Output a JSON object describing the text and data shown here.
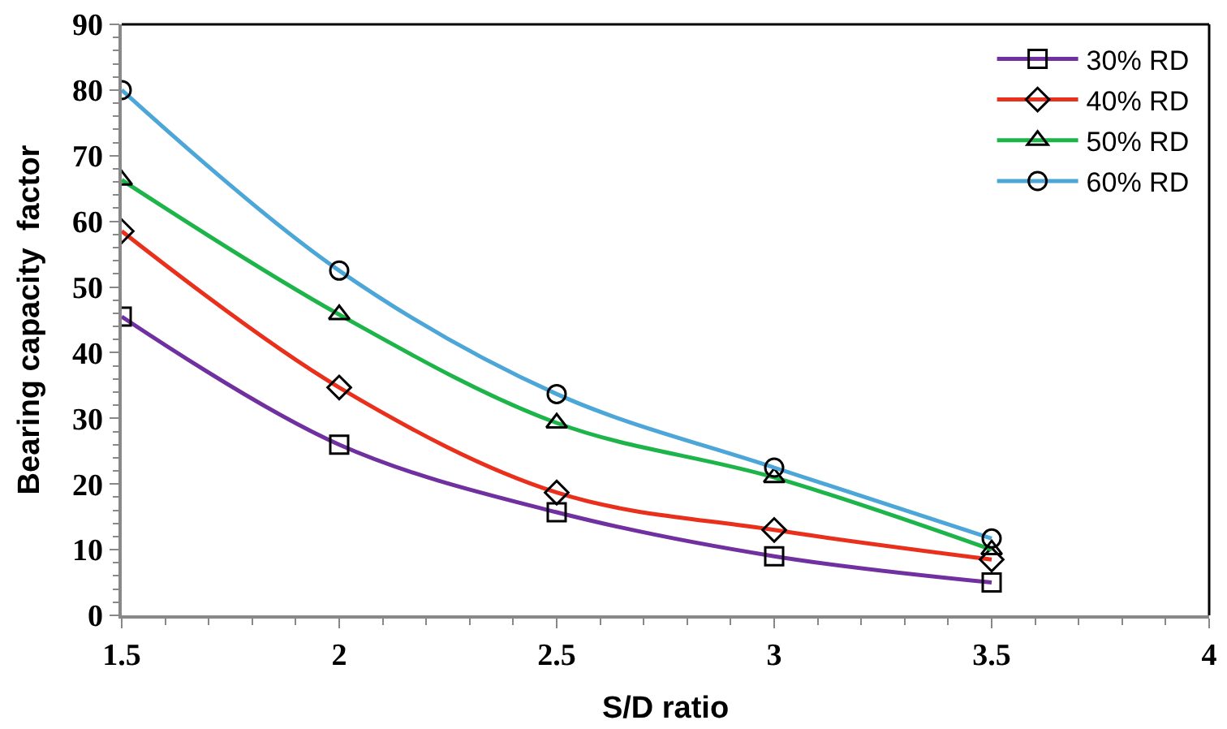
{
  "chart_data": {
    "type": "line",
    "xlabel": "S/D ratio",
    "ylabel": "Bearing capacity  factor",
    "x": [
      1.5,
      2,
      2.5,
      3,
      3.5
    ],
    "series": [
      {
        "name": "30% RD",
        "color": "#7030a0",
        "marker": "square",
        "values": [
          45.5,
          26,
          15.7,
          9,
          5
        ]
      },
      {
        "name": "40% RD",
        "color": "#e8301c",
        "marker": "diamond",
        "values": [
          58.5,
          34.7,
          18.7,
          13,
          8.5
        ]
      },
      {
        "name": "50% RD",
        "color": "#1db44a",
        "marker": "triangle",
        "values": [
          66.3,
          45.8,
          29.3,
          21,
          10
        ]
      },
      {
        "name": "60% RD",
        "color": "#4da6d8",
        "marker": "circle",
        "values": [
          80,
          52.5,
          33.7,
          22.5,
          11.7
        ]
      }
    ],
    "xlim": [
      1.5,
      4
    ],
    "xticks": [
      1.5,
      2,
      2.5,
      3,
      3.5,
      4
    ],
    "ylim": [
      0,
      90
    ],
    "yticks": [
      0,
      10,
      20,
      30,
      40,
      50,
      60,
      70,
      80,
      90
    ],
    "legend": "top right",
    "line_style": "solid"
  }
}
